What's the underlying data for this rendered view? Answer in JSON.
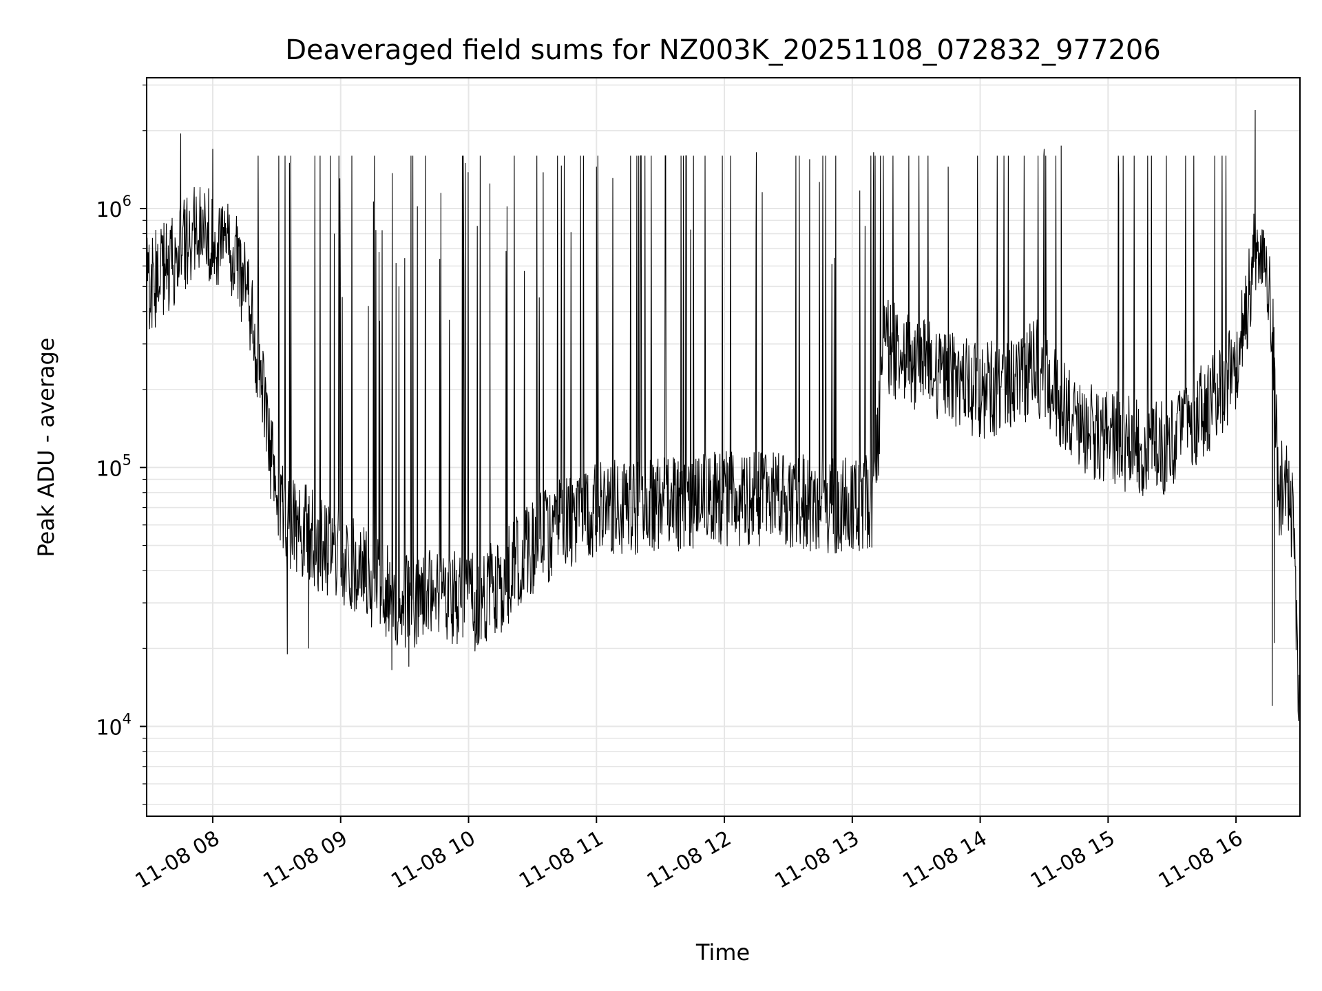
{
  "chart_data": {
    "type": "line",
    "title": "Deaveraged field sums for NZ003K_20251108_072832_977206",
    "xlabel": "Time",
    "ylabel": "Peak ADU - average",
    "x_scale": "time",
    "y_scale": "log",
    "xlim": [
      "2025-11-08 07:29",
      "2025-11-08 16:30"
    ],
    "ylim": [
      4500,
      3200000
    ],
    "grid": true,
    "line_color": "#000000",
    "grid_color": "#e6e6e6",
    "x_ticks": [
      {
        "value": "2025-11-08 08:00",
        "label": "11-08 08"
      },
      {
        "value": "2025-11-08 09:00",
        "label": "11-08 09"
      },
      {
        "value": "2025-11-08 10:00",
        "label": "11-08 10"
      },
      {
        "value": "2025-11-08 11:00",
        "label": "11-08 11"
      },
      {
        "value": "2025-11-08 12:00",
        "label": "11-08 12"
      },
      {
        "value": "2025-11-08 13:00",
        "label": "11-08 13"
      },
      {
        "value": "2025-11-08 14:00",
        "label": "11-08 14"
      },
      {
        "value": "2025-11-08 15:00",
        "label": "11-08 15"
      },
      {
        "value": "2025-11-08 16:00",
        "label": "11-08 16"
      }
    ],
    "y_ticks": [
      {
        "value": 10000,
        "base": "10",
        "exp": "4"
      },
      {
        "value": 100000,
        "base": "10",
        "exp": "5"
      },
      {
        "value": 1000000,
        "base": "10",
        "exp": "6"
      }
    ],
    "series": [
      {
        "baseline": {
          "x": [
            "2025-11-08 07:29",
            "2025-11-08 07:40",
            "2025-11-08 07:50",
            "2025-11-08 08:00",
            "2025-11-08 08:05",
            "2025-11-08 08:10",
            "2025-11-08 08:15",
            "2025-11-08 08:20",
            "2025-11-08 08:25",
            "2025-11-08 08:30",
            "2025-11-08 08:35",
            "2025-11-08 08:40",
            "2025-11-08 08:50",
            "2025-11-08 09:00",
            "2025-11-08 09:15",
            "2025-11-08 09:30",
            "2025-11-08 09:45",
            "2025-11-08 10:00",
            "2025-11-08 10:15",
            "2025-11-08 10:30",
            "2025-11-08 10:45",
            "2025-11-08 11:00",
            "2025-11-08 11:30",
            "2025-11-08 12:00",
            "2025-11-08 12:30",
            "2025-11-08 13:00",
            "2025-11-08 13:10",
            "2025-11-08 13:15",
            "2025-11-08 13:30",
            "2025-11-08 13:45",
            "2025-11-08 14:00",
            "2025-11-08 14:15",
            "2025-11-08 14:25",
            "2025-11-08 14:35",
            "2025-11-08 14:45",
            "2025-11-08 15:00",
            "2025-11-08 15:15",
            "2025-11-08 15:30",
            "2025-11-08 15:40",
            "2025-11-08 15:50",
            "2025-11-08 16:00",
            "2025-11-08 16:05",
            "2025-11-08 16:10",
            "2025-11-08 16:15",
            "2025-11-08 16:17",
            "2025-11-08 16:20",
            "2025-11-08 16:23",
            "2025-11-08 16:27",
            "2025-11-08 16:30"
          ],
          "y": [
            500000,
            600000,
            800000,
            800000,
            750000,
            700000,
            500000,
            300000,
            150000,
            80000,
            60000,
            60000,
            50000,
            45000,
            36000,
            30000,
            32000,
            30000,
            35000,
            50000,
            60000,
            70000,
            72000,
            75000,
            75000,
            70000,
            75000,
            300000,
            250000,
            220000,
            200000,
            200000,
            250000,
            200000,
            150000,
            130000,
            120000,
            120000,
            150000,
            180000,
            250000,
            400000,
            800000,
            500000,
            350000,
            80000,
            85000,
            60000,
            10000
          ]
        },
        "spikes": [
          {
            "x": "2025-11-08 07:45",
            "y": 1950000
          },
          {
            "x": "2025-11-08 08:00",
            "y": 1700000
          },
          {
            "x": "2025-11-08 08:36",
            "y": 1500000
          },
          {
            "x": "2025-11-08 08:57",
            "y": 800000
          },
          {
            "x": "2025-11-08 09:13",
            "y": 420000
          },
          {
            "x": "2025-11-08 09:18",
            "y": 680000
          },
          {
            "x": "2025-11-08 09:36",
            "y": 1020000
          },
          {
            "x": "2025-11-08 09:47",
            "y": 1150000
          },
          {
            "x": "2025-11-08 10:10",
            "y": 1250000
          },
          {
            "x": "2025-11-08 10:35",
            "y": 1380000
          },
          {
            "x": "2025-11-08 11:00",
            "y": 1450000
          },
          {
            "x": "2025-11-08 12:15",
            "y": 1650000
          },
          {
            "x": "2025-11-08 12:40",
            "y": 1550000
          },
          {
            "x": "2025-11-08 13:10",
            "y": 1650000
          },
          {
            "x": "2025-11-08 13:45",
            "y": 1450000
          },
          {
            "x": "2025-11-08 14:30",
            "y": 1700000
          },
          {
            "x": "2025-11-08 14:38",
            "y": 1750000
          },
          {
            "x": "2025-11-08 15:05",
            "y": 1300000
          },
          {
            "x": "2025-11-08 15:50",
            "y": 1600000
          },
          {
            "x": "2025-11-08 16:09",
            "y": 2400000
          }
        ],
        "dips": [
          {
            "x": "2025-11-08 08:35",
            "y": 19000
          },
          {
            "x": "2025-11-08 08:45",
            "y": 20000
          },
          {
            "x": "2025-11-08 09:24",
            "y": 16500
          },
          {
            "x": "2025-11-08 09:32",
            "y": 17000
          },
          {
            "x": "2025-11-08 10:03",
            "y": 19500
          },
          {
            "x": "2025-11-08 16:17",
            "y": 12000
          },
          {
            "x": "2025-11-08 16:18",
            "y": 21000
          }
        ]
      }
    ]
  }
}
